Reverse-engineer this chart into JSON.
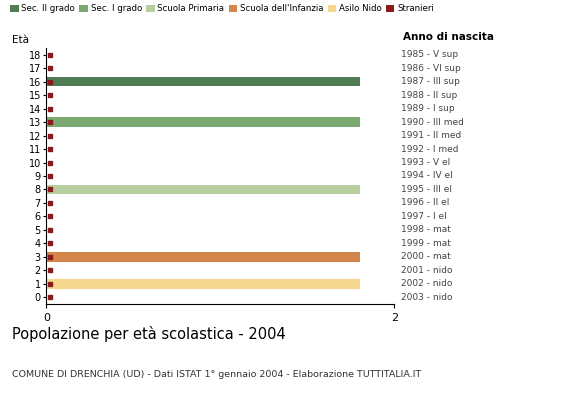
{
  "ages": [
    18,
    17,
    16,
    15,
    14,
    13,
    12,
    11,
    10,
    9,
    8,
    7,
    6,
    5,
    4,
    3,
    2,
    1,
    0
  ],
  "years_by_age": {
    "18": "1985 - V sup",
    "17": "1986 - VI sup",
    "16": "1987 - III sup",
    "15": "1988 - II sup",
    "14": "1989 - I sup",
    "13": "1990 - III med",
    "12": "1991 - II med",
    "11": "1992 - I med",
    "10": "1993 - V el",
    "9": "1994 - IV el",
    "8": "1995 - III el",
    "7": "1996 - II el",
    "6": "1997 - I el",
    "5": "1998 - mat",
    "4": "1999 - mat",
    "3": "2000 - mat",
    "2": "2001 - nido",
    "1": "2002 - nido",
    "0": "2003 - nido"
  },
  "bar_values": {
    "16": {
      "value": 1.8,
      "color": "#4f7c52"
    },
    "13": {
      "value": 1.8,
      "color": "#7aaa72"
    },
    "8": {
      "value": 1.8,
      "color": "#b8cfa0"
    },
    "3": {
      "value": 1.8,
      "color": "#d4854a"
    },
    "1": {
      "value": 1.8,
      "color": "#f5d88e"
    }
  },
  "stranieri_color": "#8b1a1a",
  "legend_labels": [
    "Sec. II grado",
    "Sec. I grado",
    "Scuola Primaria",
    "Scuola dell'Infanzia",
    "Asilo Nido",
    "Stranieri"
  ],
  "legend_colors": [
    "#4f7c52",
    "#7aaa72",
    "#b8cfa0",
    "#d4854a",
    "#f5d88e",
    "#8b1a1a"
  ],
  "title": "Popolazione per età scolastica - 2004",
  "subtitle": "COMUNE DI DRENCHIA (UD) - Dati ISTAT 1° gennaio 2004 - Elaborazione TUTTITALIA.IT",
  "xlabel_left": "Età",
  "xlabel_right": "Anno di nascita",
  "xlim": [
    0,
    2
  ],
  "xticks": [
    0,
    2
  ],
  "background_color": "#ffffff"
}
